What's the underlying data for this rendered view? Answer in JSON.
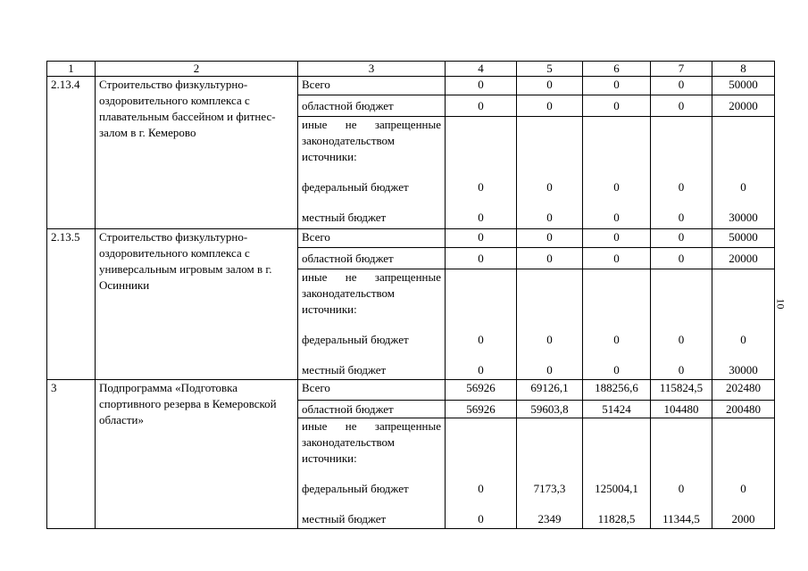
{
  "page_number": "10",
  "header": [
    "1",
    "2",
    "3",
    "4",
    "5",
    "6",
    "7",
    "8"
  ],
  "labels": {
    "total": "Всего",
    "regional": "областной бюджет",
    "other": "иные не запрещенные законодательством источники:",
    "federal": "федеральный бюджет",
    "local": "местный бюджет"
  },
  "rows": [
    {
      "code": "2.13.4",
      "name": "Строительство физкультурно-оздоровительного комплекса с плавательным бассейном и фитнес-залом в г. Кемерово",
      "total": [
        "0",
        "0",
        "0",
        "0",
        "50000"
      ],
      "regional": [
        "0",
        "0",
        "0",
        "0",
        "20000"
      ],
      "federal": [
        "0",
        "0",
        "0",
        "0",
        "0"
      ],
      "local": [
        "0",
        "0",
        "0",
        "0",
        "30000"
      ]
    },
    {
      "code": "2.13.5",
      "name": "Строительство физкультурно-оздоровительного комплекса с универсальным игровым залом в г. Осинники",
      "total": [
        "0",
        "0",
        "0",
        "0",
        "50000"
      ],
      "regional": [
        "0",
        "0",
        "0",
        "0",
        "20000"
      ],
      "federal": [
        "0",
        "0",
        "0",
        "0",
        "0"
      ],
      "local": [
        "0",
        "0",
        "0",
        "0",
        "30000"
      ]
    },
    {
      "code": "3",
      "name": "Подпрограмма «Подготовка спортивного резерва в Кемеровской области»",
      "total": [
        "56926",
        "69126,1",
        "188256,6",
        "115824,5",
        "202480"
      ],
      "regional": [
        "56926",
        "59603,8",
        "51424",
        "104480",
        "200480"
      ],
      "federal": [
        "0",
        "7173,3",
        "125004,1",
        "0",
        "0"
      ],
      "local": [
        "0",
        "2349",
        "11828,5",
        "11344,5",
        "2000"
      ]
    }
  ]
}
